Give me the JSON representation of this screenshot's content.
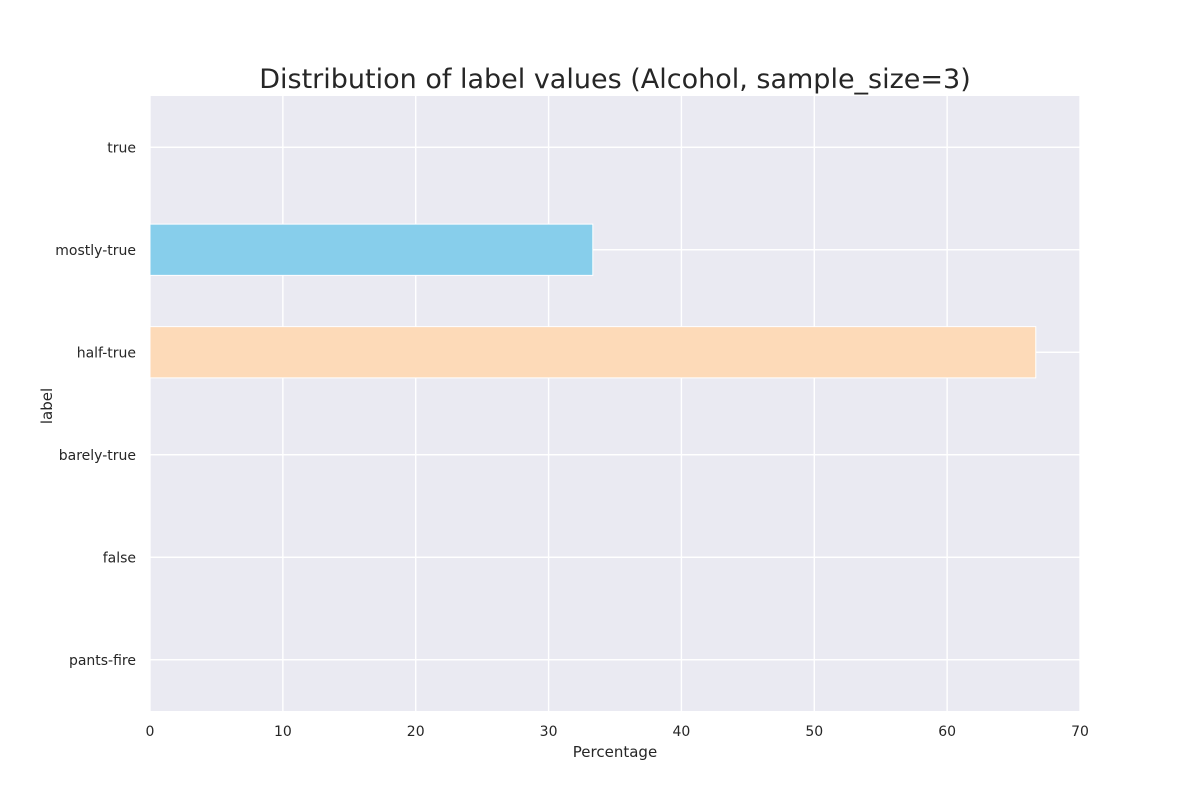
{
  "chart_data": {
    "type": "bar",
    "orientation": "horizontal",
    "title": "Distribution of label values (Alcohol, sample_size=3)",
    "xlabel": "Percentage",
    "ylabel": "label",
    "categories": [
      "true",
      "mostly-true",
      "half-true",
      "barely-true",
      "false",
      "pants-fire"
    ],
    "values": [
      0,
      33.33,
      66.67,
      0,
      0,
      0
    ],
    "bar_colors": [
      "#87ceeb",
      "#87ceeb",
      "#fddab8",
      "#87ceeb",
      "#87ceeb",
      "#87ceeb"
    ],
    "xlim": [
      0,
      70
    ],
    "xticks": [
      0,
      10,
      20,
      30,
      40,
      50,
      60,
      70
    ],
    "grid": true,
    "plot_background": "#eaeaf2",
    "grid_color": "#ffffff"
  }
}
